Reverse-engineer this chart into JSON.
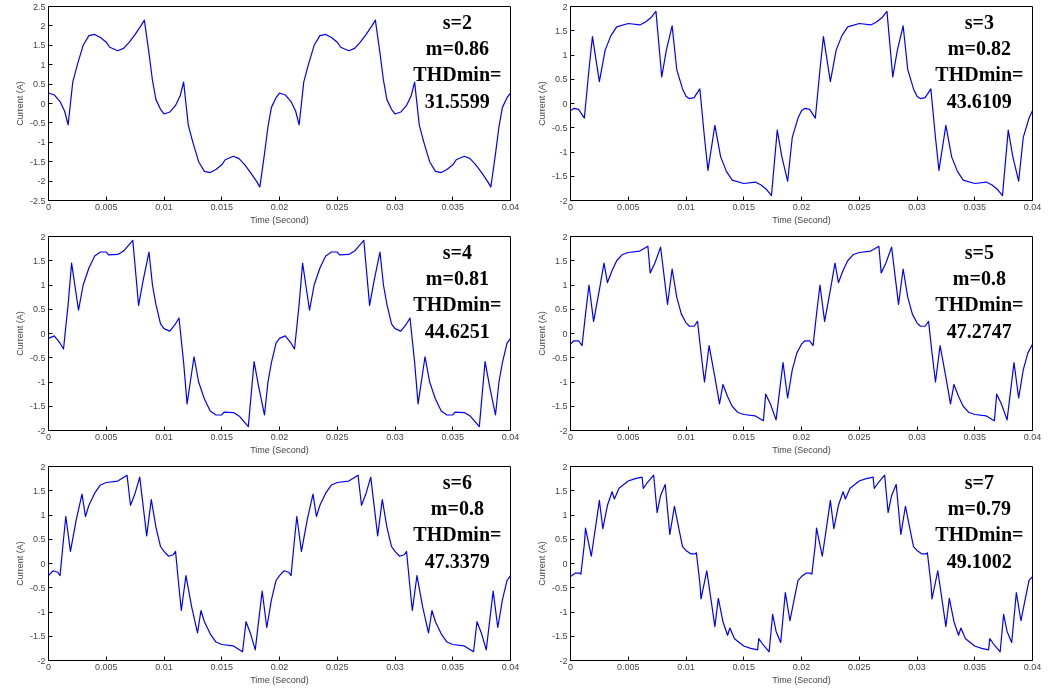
{
  "chart_data": [
    {
      "type": "line",
      "xlabel": "Time (Second)",
      "ylabel": "Current (A)",
      "color": "#0000ff",
      "xlim": [
        0,
        0.04
      ],
      "ylim": [
        -2.5,
        2.5
      ],
      "xticks": [
        0,
        0.005,
        0.01,
        0.015,
        0.02,
        0.025,
        0.03,
        0.035,
        0.04
      ],
      "yticks": [
        -2.5,
        -2,
        -1.5,
        -1,
        -0.5,
        0,
        0.5,
        1,
        1.5,
        2,
        2.5
      ],
      "annotations": [
        "s=2",
        "m=0.86",
        "THDmin=",
        "31.5599"
      ],
      "x": [
        0,
        0.0005,
        0.001,
        0.0014,
        0.0017,
        0.0021,
        0.0025,
        0.003,
        0.0035,
        0.004,
        0.0045,
        0.005,
        0.0053,
        0.006,
        0.0065,
        0.007,
        0.0075,
        0.008,
        0.0083,
        0.0087,
        0.009,
        0.0093,
        0.0097,
        0.01,
        0.0105,
        0.011,
        0.0114,
        0.0117,
        0.0121,
        0.0125,
        0.013,
        0.0135,
        0.014,
        0.0145,
        0.015,
        0.0153,
        0.016,
        0.0165,
        0.017,
        0.0175,
        0.018,
        0.0183,
        0.0187,
        0.019,
        0.0193,
        0.0197,
        0.02,
        0.0205,
        0.021,
        0.0214,
        0.0217,
        0.0221,
        0.0225,
        0.023,
        0.0235,
        0.024,
        0.0245,
        0.025,
        0.0253,
        0.026,
        0.0265,
        0.027,
        0.0275,
        0.028,
        0.0283,
        0.0287,
        0.029,
        0.0293,
        0.0297,
        0.03,
        0.0305,
        0.031,
        0.0314,
        0.0317,
        0.0321,
        0.0325,
        0.033,
        0.0335,
        0.034,
        0.0345,
        0.035,
        0.0353,
        0.036,
        0.0365,
        0.037,
        0.0375,
        0.038,
        0.0383,
        0.0387,
        0.039,
        0.0393,
        0.0397,
        0.04
      ],
      "values": [
        0.27,
        0.22,
        0.05,
        -0.2,
        -0.55,
        0.55,
        1.0,
        1.5,
        1.75,
        1.78,
        1.7,
        1.58,
        1.45,
        1.36,
        1.42,
        1.58,
        1.78,
        2.0,
        2.15,
        1.3,
        0.6,
        0.1,
        -0.15,
        -0.27,
        -0.22,
        -0.05,
        0.2,
        0.55,
        -0.55,
        -1.0,
        -1.5,
        -1.75,
        -1.78,
        -1.7,
        -1.58,
        -1.45,
        -1.36,
        -1.42,
        -1.58,
        -1.78,
        -2.0,
        -2.15,
        -1.3,
        -0.6,
        -0.1,
        0.15,
        0.27,
        0.22,
        0.05,
        -0.2,
        -0.55,
        0.55,
        1.0,
        1.5,
        1.75,
        1.78,
        1.7,
        1.58,
        1.45,
        1.36,
        1.42,
        1.58,
        1.78,
        2.0,
        2.15,
        1.3,
        0.6,
        0.1,
        -0.15,
        -0.27,
        -0.22,
        -0.05,
        0.2,
        0.55,
        -0.55,
        -1.0,
        -1.5,
        -1.75,
        -1.78,
        -1.7,
        -1.58,
        -1.45,
        -1.36,
        -1.42,
        -1.58,
        -1.78,
        -2.0,
        -2.15,
        -1.3,
        -0.6,
        -0.1,
        0.15,
        0.27
      ]
    },
    {
      "type": "line",
      "xlabel": "Time (Second)",
      "ylabel": "Current (A)",
      "color": "#0000ff",
      "xlim": [
        0,
        0.04
      ],
      "ylim": [
        -2,
        2
      ],
      "xticks": [
        0,
        0.005,
        0.01,
        0.015,
        0.02,
        0.025,
        0.03,
        0.035,
        0.04
      ],
      "yticks": [
        -2,
        -1.5,
        -1,
        -0.5,
        0,
        0.5,
        1,
        1.5,
        2
      ],
      "annotations": [
        "s=3",
        "m=0.82",
        "THDmin=",
        "43.6109"
      ],
      "x": [
        0,
        0.0003,
        0.0007,
        0.0012,
        0.0016,
        0.0019,
        0.0025,
        0.003,
        0.0035,
        0.004,
        0.005,
        0.006,
        0.0065,
        0.007,
        0.0074,
        0.0079,
        0.0083,
        0.0088,
        0.0092,
        0.0097,
        0.01,
        0.0103,
        0.0107,
        0.0112,
        0.0116,
        0.0119,
        0.0125,
        0.013,
        0.0135,
        0.014,
        0.015,
        0.016,
        0.0165,
        0.017,
        0.0174,
        0.0179,
        0.0183,
        0.0188,
        0.0192,
        0.0197,
        0.02,
        0.0203,
        0.0207,
        0.0212,
        0.0216,
        0.0219,
        0.0225,
        0.023,
        0.0235,
        0.024,
        0.025,
        0.026,
        0.0265,
        0.027,
        0.0274,
        0.0279,
        0.0283,
        0.0288,
        0.0292,
        0.0297,
        0.03,
        0.0303,
        0.0307,
        0.0312,
        0.0316,
        0.0319,
        0.0325,
        0.033,
        0.0335,
        0.034,
        0.035,
        0.036,
        0.0365,
        0.037,
        0.0374,
        0.0379,
        0.0383,
        0.0388,
        0.0392,
        0.0397,
        0.04
      ],
      "values": [
        -0.15,
        -0.1,
        -0.12,
        -0.3,
        0.7,
        1.38,
        0.45,
        1.1,
        1.4,
        1.58,
        1.65,
        1.62,
        1.68,
        1.78,
        1.9,
        0.55,
        1.1,
        1.6,
        0.7,
        0.3,
        0.15,
        0.1,
        0.12,
        0.3,
        -0.7,
        -1.38,
        -0.45,
        -1.1,
        -1.4,
        -1.58,
        -1.65,
        -1.62,
        -1.68,
        -1.78,
        -1.9,
        -0.55,
        -1.1,
        -1.6,
        -0.7,
        -0.3,
        -0.15,
        -0.1,
        -0.12,
        -0.3,
        0.7,
        1.38,
        0.45,
        1.1,
        1.4,
        1.58,
        1.65,
        1.62,
        1.68,
        1.78,
        1.9,
        0.55,
        1.1,
        1.6,
        0.7,
        0.3,
        0.15,
        0.1,
        0.12,
        0.3,
        -0.7,
        -1.38,
        -0.45,
        -1.1,
        -1.4,
        -1.58,
        -1.65,
        -1.62,
        -1.68,
        -1.78,
        -1.9,
        -0.55,
        -1.1,
        -1.6,
        -0.7,
        -0.3,
        -0.15
      ]
    },
    {
      "type": "line",
      "xlabel": "Time (Second)",
      "ylabel": "Current (A)",
      "color": "#0000ff",
      "xlim": [
        0,
        0.04
      ],
      "ylim": [
        -2,
        2
      ],
      "xticks": [
        0,
        0.005,
        0.01,
        0.015,
        0.02,
        0.025,
        0.03,
        0.035,
        0.04
      ],
      "yticks": [
        -2,
        -1.5,
        -1,
        -0.5,
        0,
        0.5,
        1,
        1.5,
        2
      ],
      "annotations": [
        "s=4",
        "m=0.81",
        "THDmin=",
        "44.6251"
      ],
      "x": [
        0,
        0.0005,
        0.001,
        0.0013,
        0.0017,
        0.002,
        0.0026,
        0.003,
        0.0035,
        0.004,
        0.0045,
        0.005,
        0.0052,
        0.006,
        0.0065,
        0.0073,
        0.0078,
        0.0082,
        0.0087,
        0.009,
        0.0093,
        0.0097,
        0.01,
        0.0105,
        0.011,
        0.0113,
        0.0117,
        0.012,
        0.0126,
        0.013,
        0.0135,
        0.014,
        0.0145,
        0.015,
        0.0152,
        0.016,
        0.0165,
        0.0173,
        0.0178,
        0.0182,
        0.0187,
        0.019,
        0.0193,
        0.0197,
        0.02,
        0.0205,
        0.021,
        0.0213,
        0.0217,
        0.022,
        0.0226,
        0.023,
        0.0235,
        0.024,
        0.0245,
        0.025,
        0.0252,
        0.026,
        0.0265,
        0.0273,
        0.0278,
        0.0282,
        0.0287,
        0.029,
        0.0293,
        0.0297,
        0.03,
        0.0305,
        0.031,
        0.0313,
        0.0317,
        0.032,
        0.0326,
        0.033,
        0.0335,
        0.034,
        0.0345,
        0.035,
        0.0352,
        0.036,
        0.0365,
        0.0373,
        0.0378,
        0.0382,
        0.0387,
        0.039,
        0.0393,
        0.0397,
        0.04
      ],
      "values": [
        -0.1,
        -0.05,
        -0.2,
        -0.32,
        0.6,
        1.45,
        0.48,
        1.0,
        1.35,
        1.6,
        1.68,
        1.68,
        1.62,
        1.63,
        1.7,
        1.92,
        0.58,
        1.1,
        1.68,
        1.0,
        0.6,
        0.2,
        0.1,
        0.05,
        0.2,
        0.32,
        -0.6,
        -1.45,
        -0.48,
        -1.0,
        -1.35,
        -1.6,
        -1.68,
        -1.68,
        -1.62,
        -1.63,
        -1.7,
        -1.92,
        -0.58,
        -1.1,
        -1.68,
        -1.0,
        -0.6,
        -0.2,
        -0.1,
        -0.05,
        -0.2,
        -0.32,
        0.6,
        1.45,
        0.48,
        1.0,
        1.35,
        1.6,
        1.68,
        1.68,
        1.62,
        1.63,
        1.7,
        1.92,
        0.58,
        1.1,
        1.68,
        1.0,
        0.6,
        0.2,
        0.1,
        0.05,
        0.2,
        0.32,
        -0.6,
        -1.45,
        -0.48,
        -1.0,
        -1.35,
        -1.6,
        -1.68,
        -1.68,
        -1.62,
        -1.63,
        -1.7,
        -1.92,
        -0.58,
        -1.1,
        -1.68,
        -1.0,
        -0.6,
        -0.2,
        -0.1
      ]
    },
    {
      "type": "line",
      "xlabel": "Time (Second)",
      "ylabel": "Current (A)",
      "color": "#0000ff",
      "xlim": [
        0,
        0.04
      ],
      "ylim": [
        -2,
        2
      ],
      "xticks": [
        0,
        0.005,
        0.01,
        0.015,
        0.02,
        0.025,
        0.03,
        0.035,
        0.04
      ],
      "yticks": [
        -2,
        -1.5,
        -1,
        -0.5,
        0,
        0.5,
        1,
        1.5,
        2
      ],
      "annotations": [
        "s=5",
        "m=0.8",
        "THDmin=",
        "47.2747"
      ],
      "x": [
        0,
        0.0003,
        0.0007,
        0.001,
        0.0013,
        0.0016,
        0.002,
        0.0025,
        0.0029,
        0.0032,
        0.0036,
        0.004,
        0.0045,
        0.005,
        0.006,
        0.0067,
        0.0069,
        0.0073,
        0.0078,
        0.0084,
        0.0088,
        0.0092,
        0.0096,
        0.01,
        0.0103,
        0.0107,
        0.011,
        0.0113,
        0.0116,
        0.012,
        0.0125,
        0.0129,
        0.0132,
        0.0136,
        0.014,
        0.0145,
        0.015,
        0.016,
        0.0167,
        0.0169,
        0.0173,
        0.0178,
        0.0184,
        0.0188,
        0.0192,
        0.0196,
        0.02,
        0.0203,
        0.0207,
        0.021,
        0.0213,
        0.0216,
        0.022,
        0.0225,
        0.0229,
        0.0232,
        0.0236,
        0.024,
        0.0245,
        0.025,
        0.026,
        0.0267,
        0.0269,
        0.0273,
        0.0278,
        0.0284,
        0.0288,
        0.0292,
        0.0296,
        0.03,
        0.0303,
        0.0307,
        0.031,
        0.0313,
        0.0316,
        0.032,
        0.0325,
        0.0329,
        0.0332,
        0.0336,
        0.034,
        0.0345,
        0.035,
        0.036,
        0.0367,
        0.0369,
        0.0373,
        0.0378,
        0.0384,
        0.0388,
        0.0392,
        0.0396,
        0.04
      ],
      "values": [
        -0.22,
        -0.15,
        -0.15,
        -0.25,
        0.4,
        1.0,
        0.25,
        0.9,
        1.45,
        1.05,
        1.3,
        1.5,
        1.63,
        1.67,
        1.7,
        1.8,
        1.25,
        1.45,
        1.78,
        0.6,
        1.33,
        0.75,
        0.4,
        0.22,
        0.15,
        0.15,
        0.25,
        -0.4,
        -1.0,
        -0.25,
        -0.9,
        -1.45,
        -1.05,
        -1.3,
        -1.5,
        -1.63,
        -1.67,
        -1.7,
        -1.8,
        -1.25,
        -1.45,
        -1.78,
        -0.6,
        -1.33,
        -0.75,
        -0.4,
        -0.22,
        -0.15,
        -0.15,
        -0.25,
        0.4,
        1.0,
        0.25,
        0.9,
        1.45,
        1.05,
        1.3,
        1.5,
        1.63,
        1.67,
        1.7,
        1.8,
        1.25,
        1.45,
        1.78,
        0.6,
        1.33,
        0.75,
        0.4,
        0.22,
        0.15,
        0.15,
        0.25,
        -0.4,
        -1.0,
        -0.25,
        -0.9,
        -1.45,
        -1.05,
        -1.3,
        -1.5,
        -1.63,
        -1.67,
        -1.7,
        -1.8,
        -1.25,
        -1.45,
        -1.78,
        -0.6,
        -1.33,
        -0.75,
        -0.4,
        -0.22
      ]
    },
    {
      "type": "line",
      "xlabel": "Time (Second)",
      "ylabel": "Current (A)",
      "color": "#0000ff",
      "xlim": [
        0,
        0.04
      ],
      "ylim": [
        -2,
        2
      ],
      "xticks": [
        0,
        0.005,
        0.01,
        0.015,
        0.02,
        0.025,
        0.03,
        0.035,
        0.04
      ],
      "yticks": [
        -2,
        -1.5,
        -1,
        -0.5,
        0,
        0.5,
        1,
        1.5,
        2
      ],
      "annotations": [
        "s=6",
        "m=0.8",
        "THDmin=",
        "47.3379"
      ],
      "x": [
        0,
        0.0004,
        0.0008,
        0.001,
        0.0013,
        0.0015,
        0.0019,
        0.0024,
        0.0029,
        0.0032,
        0.0035,
        0.004,
        0.0045,
        0.005,
        0.006,
        0.0068,
        0.0071,
        0.0075,
        0.0079,
        0.0085,
        0.0089,
        0.0093,
        0.0097,
        0.01,
        0.0104,
        0.0108,
        0.011,
        0.0113,
        0.0115,
        0.0119,
        0.0124,
        0.0129,
        0.0132,
        0.0135,
        0.014,
        0.0145,
        0.015,
        0.016,
        0.0168,
        0.0171,
        0.0175,
        0.0179,
        0.0185,
        0.0189,
        0.0193,
        0.0197,
        0.02,
        0.0204,
        0.0208,
        0.021,
        0.0213,
        0.0215,
        0.0219,
        0.0224,
        0.0229,
        0.0232,
        0.0235,
        0.024,
        0.0245,
        0.025,
        0.026,
        0.0268,
        0.0271,
        0.0275,
        0.0279,
        0.0285,
        0.0289,
        0.0293,
        0.0297,
        0.03,
        0.0304,
        0.0308,
        0.031,
        0.0313,
        0.0315,
        0.0319,
        0.0324,
        0.0329,
        0.0332,
        0.0335,
        0.034,
        0.0345,
        0.035,
        0.036,
        0.0368,
        0.0371,
        0.0375,
        0.0379,
        0.0385,
        0.0389,
        0.0393,
        0.0397,
        0.04
      ],
      "values": [
        -0.25,
        -0.15,
        -0.18,
        -0.25,
        0.5,
        0.97,
        0.25,
        0.9,
        1.43,
        0.97,
        1.2,
        1.45,
        1.62,
        1.67,
        1.7,
        1.82,
        1.2,
        1.45,
        1.78,
        0.57,
        1.32,
        0.75,
        0.35,
        0.25,
        0.15,
        0.18,
        0.25,
        -0.5,
        -0.97,
        -0.25,
        -0.9,
        -1.43,
        -0.97,
        -1.2,
        -1.45,
        -1.62,
        -1.67,
        -1.7,
        -1.82,
        -1.2,
        -1.45,
        -1.78,
        -0.57,
        -1.32,
        -0.75,
        -0.35,
        -0.25,
        -0.15,
        -0.18,
        -0.25,
        0.5,
        0.97,
        0.25,
        0.9,
        1.43,
        0.97,
        1.2,
        1.45,
        1.62,
        1.67,
        1.7,
        1.82,
        1.2,
        1.45,
        1.78,
        0.57,
        1.32,
        0.75,
        0.35,
        0.25,
        0.15,
        0.18,
        0.25,
        -0.5,
        -0.97,
        -0.25,
        -0.9,
        -1.43,
        -0.97,
        -1.2,
        -1.45,
        -1.62,
        -1.67,
        -1.7,
        -1.82,
        -1.2,
        -1.45,
        -1.78,
        -0.57,
        -1.32,
        -0.75,
        -0.35,
        -0.25
      ]
    },
    {
      "type": "line",
      "xlabel": "Time (Second)",
      "ylabel": "Current (A)",
      "color": "#0000ff",
      "xlim": [
        0,
        0.04
      ],
      "ylim": [
        -2,
        2
      ],
      "xticks": [
        0,
        0.005,
        0.01,
        0.015,
        0.02,
        0.025,
        0.03,
        0.035,
        0.04
      ],
      "yticks": [
        -2,
        -1.5,
        -1,
        -0.5,
        0,
        0.5,
        1,
        1.5,
        2
      ],
      "annotations": [
        "s=7",
        "m=0.79",
        "THDmin=",
        "49.1002"
      ],
      "x": [
        0,
        0.0004,
        0.0008,
        0.0009,
        0.0012,
        0.0013,
        0.0018,
        0.0022,
        0.0025,
        0.0028,
        0.0032,
        0.0036,
        0.0038,
        0.0042,
        0.005,
        0.0056,
        0.0062,
        0.0063,
        0.0066,
        0.0072,
        0.0075,
        0.0078,
        0.0082,
        0.0086,
        0.009,
        0.0094,
        0.0097,
        0.01,
        0.0104,
        0.0108,
        0.0109,
        0.0112,
        0.0113,
        0.0118,
        0.0122,
        0.0125,
        0.0128,
        0.0132,
        0.0136,
        0.0138,
        0.0142,
        0.015,
        0.0156,
        0.0162,
        0.0163,
        0.0166,
        0.0172,
        0.0175,
        0.0178,
        0.0182,
        0.0186,
        0.019,
        0.0194,
        0.0197,
        0.02,
        0.0204,
        0.0208,
        0.0209,
        0.0212,
        0.0213,
        0.0218,
        0.0222,
        0.0225,
        0.0228,
        0.0232,
        0.0236,
        0.0238,
        0.0242,
        0.025,
        0.0256,
        0.0262,
        0.0263,
        0.0266,
        0.0272,
        0.0275,
        0.0278,
        0.0282,
        0.0286,
        0.029,
        0.0294,
        0.0297,
        0.03,
        0.0304,
        0.0308,
        0.0309,
        0.0312,
        0.0313,
        0.0318,
        0.0322,
        0.0325,
        0.0328,
        0.0332,
        0.0336,
        0.0338,
        0.0342,
        0.035,
        0.0356,
        0.0362,
        0.0363,
        0.0366,
        0.0372,
        0.0375,
        0.0378,
        0.0382,
        0.0386,
        0.039,
        0.0394,
        0.0397,
        0.04
      ],
      "values": [
        -0.27,
        -0.2,
        -0.2,
        -0.22,
        0.4,
        0.73,
        0.15,
        0.8,
        1.3,
        0.72,
        1.2,
        1.48,
        1.33,
        1.55,
        1.7,
        1.75,
        1.78,
        1.55,
        1.65,
        1.82,
        1.05,
        1.4,
        1.63,
        0.6,
        1.18,
        0.7,
        0.35,
        0.27,
        0.2,
        0.2,
        0.22,
        -0.4,
        -0.73,
        -0.15,
        -0.8,
        -1.3,
        -0.72,
        -1.2,
        -1.48,
        -1.33,
        -1.55,
        -1.7,
        -1.75,
        -1.78,
        -1.55,
        -1.65,
        -1.82,
        -1.05,
        -1.4,
        -1.63,
        -0.6,
        -1.18,
        -0.7,
        -0.35,
        -0.27,
        -0.2,
        -0.2,
        -0.22,
        0.4,
        0.73,
        0.15,
        0.8,
        1.3,
        0.72,
        1.2,
        1.48,
        1.33,
        1.55,
        1.7,
        1.75,
        1.78,
        1.55,
        1.65,
        1.82,
        1.05,
        1.4,
        1.63,
        0.6,
        1.18,
        0.7,
        0.35,
        0.27,
        0.2,
        0.2,
        0.22,
        -0.4,
        -0.73,
        -0.15,
        -0.8,
        -1.3,
        -0.72,
        -1.2,
        -1.48,
        -1.33,
        -1.55,
        -1.7,
        -1.75,
        -1.78,
        -1.55,
        -1.65,
        -1.82,
        -1.05,
        -1.4,
        -1.63,
        -0.6,
        -1.18,
        -0.7,
        -0.35,
        -0.27
      ]
    }
  ]
}
